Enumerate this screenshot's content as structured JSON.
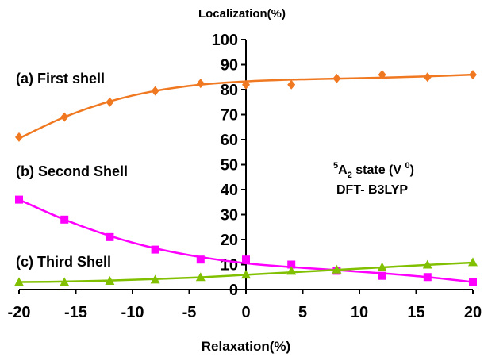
{
  "chart_data": {
    "type": "scatter",
    "title": "Localization(%)",
    "xlabel": "Relaxation(%)",
    "ylabel": "",
    "xlim": [
      -20,
      20
    ],
    "ylim": [
      0,
      100
    ],
    "x_ticks": [
      "-20",
      "-15",
      "-10",
      "-5",
      "0",
      "5",
      "10",
      "15",
      "20"
    ],
    "y_ticks": [
      "0",
      "10",
      "20",
      "30",
      "40",
      "50",
      "60",
      "70",
      "80",
      "90",
      "100"
    ],
    "grid": false,
    "series": [
      {
        "name": "(a) First shell",
        "marker": "diamond",
        "color": "#f07820",
        "x": [
          -20,
          -16,
          -12,
          -8,
          -4,
          0,
          4,
          8,
          12,
          16,
          20
        ],
        "y": [
          61,
          69,
          75,
          79.5,
          82.5,
          82,
          82,
          84.5,
          86,
          85,
          86
        ],
        "fit": [
          60.5,
          69,
          75.3,
          79.5,
          82,
          83.3,
          84,
          84.4,
          84.8,
          85.3,
          86
        ]
      },
      {
        "name": "(b) Second Shell",
        "marker": "square",
        "color": "#ff00ff",
        "x": [
          -20,
          -16,
          -12,
          -8,
          -4,
          0,
          4,
          8,
          12,
          16,
          20
        ],
        "y": [
          36,
          28,
          21,
          16,
          12,
          12,
          10,
          7.5,
          5.5,
          5,
          3
        ],
        "fit": [
          36,
          28,
          21.5,
          16.5,
          13,
          10.5,
          9,
          7.8,
          6.5,
          5,
          3
        ]
      },
      {
        "name": "(c) Third Shell",
        "marker": "triangle",
        "color": "#80c000",
        "x": [
          -20,
          -16,
          -12,
          -8,
          -4,
          0,
          4,
          8,
          12,
          16,
          20
        ],
        "y": [
          3,
          3,
          3.5,
          4,
          5,
          6,
          7.5,
          8,
          9,
          10,
          11
        ],
        "fit": [
          3,
          3.2,
          3.6,
          4.2,
          4.9,
          5.9,
          6.9,
          7.9,
          8.9,
          9.9,
          10.8
        ]
      }
    ],
    "annotation": {
      "state_prefix": "5",
      "state_main": "A",
      "state_sub": "2",
      "state_mid": " state (V ",
      "state_sup": "0",
      "state_end": ")",
      "method": "DFT- B3LYP"
    }
  }
}
